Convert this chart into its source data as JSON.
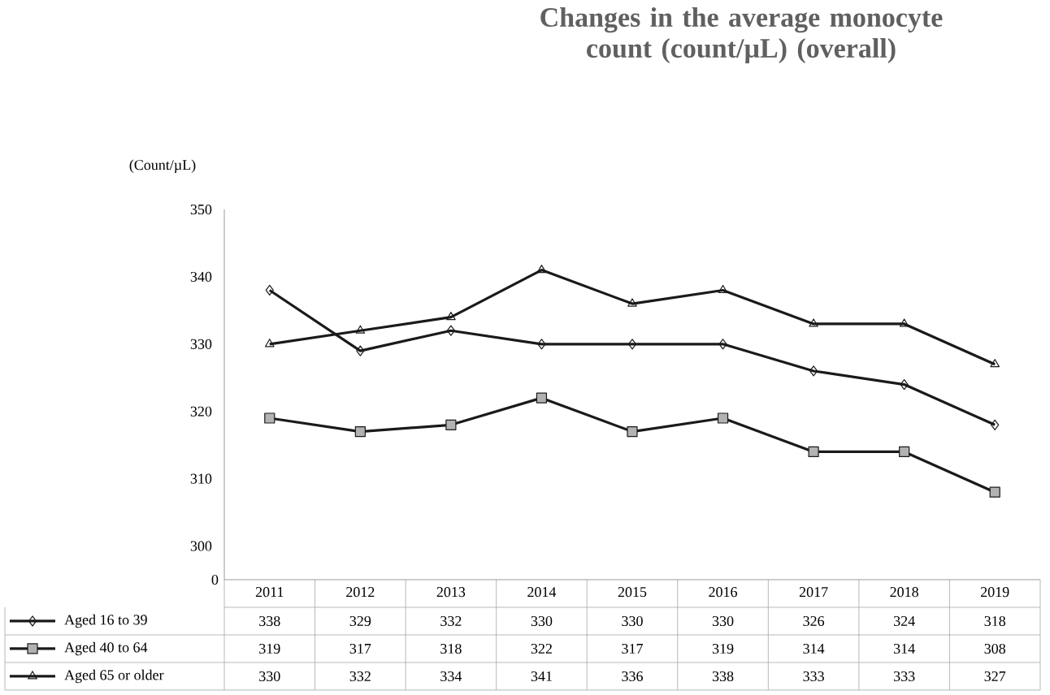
{
  "chart_data": {
    "type": "line",
    "title": "Changes in the average monocyte count (count/µL) (overall)",
    "ylabel": "(Count/µL)",
    "categories": [
      "2011",
      "2012",
      "2013",
      "2014",
      "2015",
      "2016",
      "2017",
      "2018",
      "2019"
    ],
    "series": [
      {
        "name": "Aged 16 to 39",
        "color": "#1a1a1a",
        "marker": "diamond",
        "values": [
          338,
          329,
          332,
          330,
          330,
          330,
          326,
          324,
          318
        ]
      },
      {
        "name": "Aged 40 to 64",
        "color": "#1a1a1a",
        "marker": "square",
        "values": [
          319,
          317,
          318,
          322,
          317,
          319,
          314,
          314,
          308
        ]
      },
      {
        "name": "Aged 65 or older",
        "color": "#1a1a1a",
        "marker": "triangle",
        "values": [
          330,
          332,
          334,
          341,
          336,
          338,
          333,
          333,
          327
        ]
      }
    ],
    "ylim": [
      295,
      350
    ],
    "yticks": [
      300,
      310,
      320,
      330,
      340,
      350
    ],
    "annotations": [
      "0"
    ],
    "data_labels": true,
    "legend": "bottom",
    "grid": false
  }
}
